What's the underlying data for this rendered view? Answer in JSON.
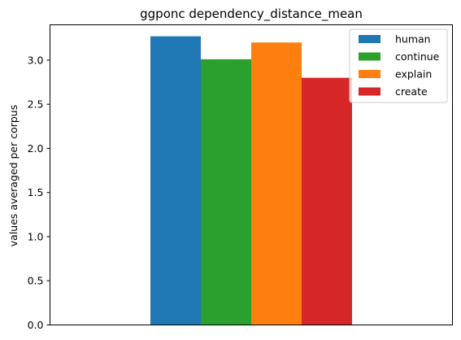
{
  "chart_data": {
    "type": "bar",
    "title": "ggponc dependency_distance_mean",
    "xlabel": "",
    "ylabel": "values averaged per corpus",
    "ylim": [
      0,
      3.4
    ],
    "yticks": [
      "0.0",
      "0.5",
      "1.0",
      "1.5",
      "2.0",
      "2.5",
      "3.0"
    ],
    "grid": false,
    "legend_position": "top-right",
    "series": [
      {
        "name": "human",
        "value": 3.27,
        "color": "#1f77b4"
      },
      {
        "name": "continue",
        "value": 3.01,
        "color": "#2ca02c"
      },
      {
        "name": "explain",
        "value": 3.2,
        "color": "#ff7f0e"
      },
      {
        "name": "create",
        "value": 2.8,
        "color": "#d62728"
      }
    ]
  }
}
